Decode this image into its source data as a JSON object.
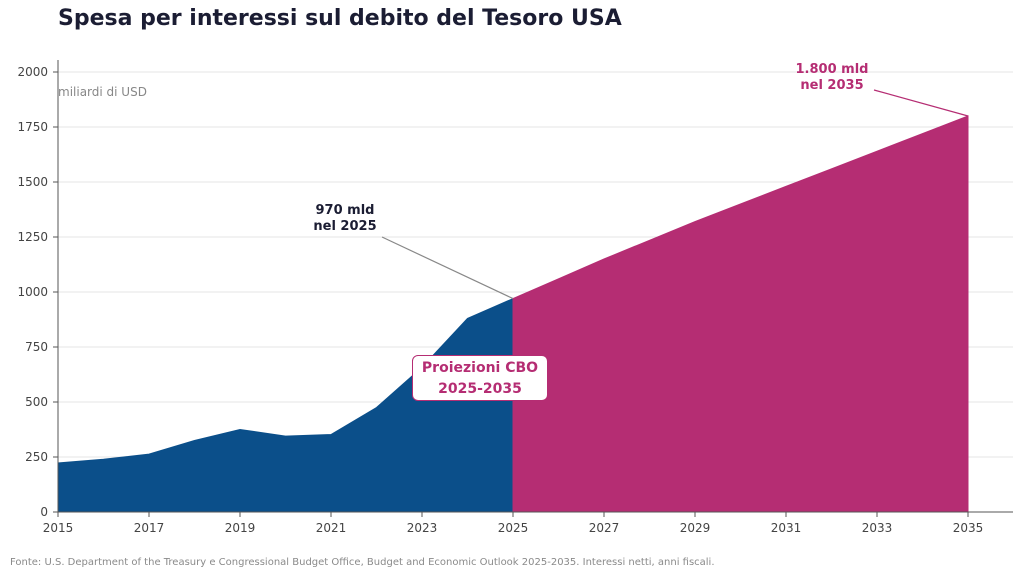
{
  "chart_data": {
    "type": "area",
    "title": "Spesa per interessi sul debito del Tesoro USA",
    "unit_label": "miliardi di USD",
    "ylim": [
      0,
      2050
    ],
    "xlim": [
      2015,
      2036
    ],
    "x_ticks": [
      2015,
      2017,
      2019,
      2021,
      2023,
      2025,
      2027,
      2029,
      2031,
      2033,
      2035
    ],
    "y_ticks": [
      0,
      250,
      500,
      750,
      1000,
      1250,
      1500,
      1750,
      2000
    ],
    "grid": "horizontal",
    "series": [
      {
        "type": "historical",
        "color": "#0b4f8a",
        "x": [
          2015,
          2016,
          2017,
          2018,
          2019,
          2020,
          2021,
          2022,
          2023,
          2024,
          2025
        ],
        "values": [
          223,
          240,
          263,
          325,
          375,
          345,
          352,
          475,
          658,
          880,
          970
        ]
      },
      {
        "type": "projection",
        "color": "#b52d73",
        "x": [
          2025,
          2026,
          2027,
          2028,
          2029,
          2030,
          2031,
          2032,
          2033,
          2034,
          2035
        ],
        "values": [
          970,
          1060,
          1150,
          1235,
          1320,
          1400,
          1480,
          1560,
          1640,
          1720,
          1800
        ]
      }
    ],
    "annotations": {
      "hist": "970 mld\nnel 2025",
      "proj": "1.800 mld\nnel 2035",
      "box": "Proiezioni CBO\n2025-2035"
    }
  },
  "source": "Fonte: U.S. Department of the Treasury e Congressional Budget Office, Budget and Economic Outlook 2025-2035. Interessi netti, anni fiscali."
}
